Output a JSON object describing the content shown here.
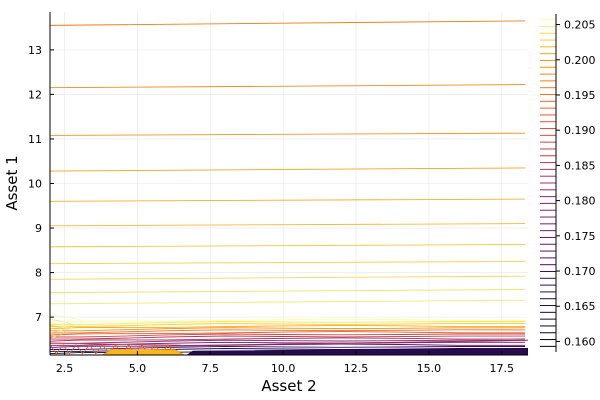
{
  "chart_data": {
    "type": "contour",
    "xlabel": "Asset 2",
    "ylabel": "Asset 1",
    "xlim": [
      2.0,
      18.4
    ],
    "ylim": [
      6.15,
      13.85
    ],
    "x_ticks": [
      2.5,
      5.0,
      7.5,
      10.0,
      12.5,
      15.0,
      17.5
    ],
    "x_tick_labels": [
      "2.5",
      "5.0",
      "7.5",
      "10.0",
      "12.5",
      "15.0",
      "17.5"
    ],
    "y_ticks": [
      7,
      8,
      9,
      10,
      11,
      12,
      13
    ],
    "y_tick_labels": [
      "7",
      "8",
      "9",
      "10",
      "11",
      "12",
      "13"
    ],
    "grid": true,
    "colorbar": {
      "range": [
        0.1585,
        0.2065
      ],
      "ticks": [
        0.16,
        0.165,
        0.17,
        0.175,
        0.18,
        0.185,
        0.19,
        0.195,
        0.2,
        0.205
      ],
      "tick_labels": [
        "0.160",
        "0.165",
        "0.170",
        "0.175",
        "0.180",
        "0.185",
        "0.190",
        "0.195",
        "0.200",
        "0.205"
      ],
      "colormap": "inferno"
    },
    "contour_lines": [
      {
        "y0": 13.55,
        "y1": 13.65,
        "color": "#f07e13"
      },
      {
        "y0": 12.15,
        "y1": 12.22,
        "color": "#f3891a"
      },
      {
        "y0": 11.08,
        "y1": 11.13,
        "color": "#f5941c"
      },
      {
        "y0": 10.28,
        "y1": 10.35,
        "color": "#f7a11f"
      },
      {
        "y0": 9.6,
        "y1": 9.65,
        "color": "#f8ad28"
      },
      {
        "y0": 9.05,
        "y1": 9.1,
        "color": "#f9b92f"
      },
      {
        "y0": 8.58,
        "y1": 8.63,
        "color": "#f9c43b"
      },
      {
        "y0": 8.2,
        "y1": 8.25,
        "color": "#f8cf48"
      },
      {
        "y0": 7.85,
        "y1": 7.92,
        "color": "#f6d955"
      },
      {
        "y0": 7.55,
        "y1": 7.62,
        "color": "#f4e264"
      },
      {
        "y0": 7.3,
        "y1": 7.38,
        "color": "#f2e974"
      }
    ],
    "series_note": ""
  }
}
